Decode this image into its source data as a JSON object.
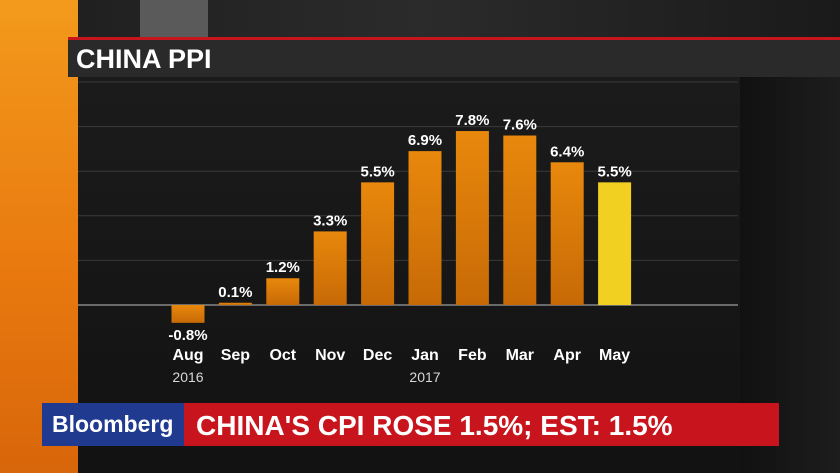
{
  "title": "CHINA PPI",
  "chart_data": {
    "type": "bar",
    "title": "CHINA PPI",
    "categories": [
      "Aug",
      "Sep",
      "Oct",
      "Nov",
      "Dec",
      "Jan",
      "Feb",
      "Mar",
      "Apr",
      "May"
    ],
    "year_labels": [
      "2016",
      "",
      "",
      "",
      "",
      "2017",
      "",
      "",
      "",
      ""
    ],
    "values": [
      -0.8,
      0.1,
      1.2,
      3.3,
      5.5,
      6.9,
      7.8,
      7.6,
      6.4,
      5.5
    ],
    "value_labels": [
      "-0.8%",
      "0.1%",
      "1.2%",
      "3.3%",
      "5.5%",
      "6.9%",
      "7.8%",
      "7.6%",
      "6.4%",
      "5.5%"
    ],
    "highlight_index": 9,
    "ylim": [
      -1.5,
      10
    ],
    "grid": true,
    "colors": {
      "bar": "#e8880c",
      "highlight": "#f2d022"
    }
  },
  "ticker": {
    "brand": "Bloomberg",
    "headline": "CHINA'S CPI ROSE 1.5%; EST: 1.5%"
  }
}
